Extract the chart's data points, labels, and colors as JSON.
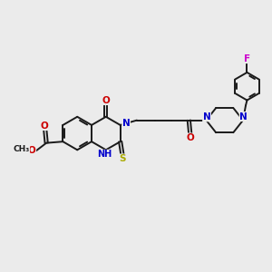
{
  "background_color": "#ebebeb",
  "bond_color": "#1a1a1a",
  "atom_colors": {
    "N": "#0000cc",
    "O": "#cc0000",
    "S": "#aaaa00",
    "F": "#cc00cc",
    "C": "#1a1a1a",
    "H": "#1a1a1a"
  },
  "lw": 1.4,
  "fontsize": 7.5
}
